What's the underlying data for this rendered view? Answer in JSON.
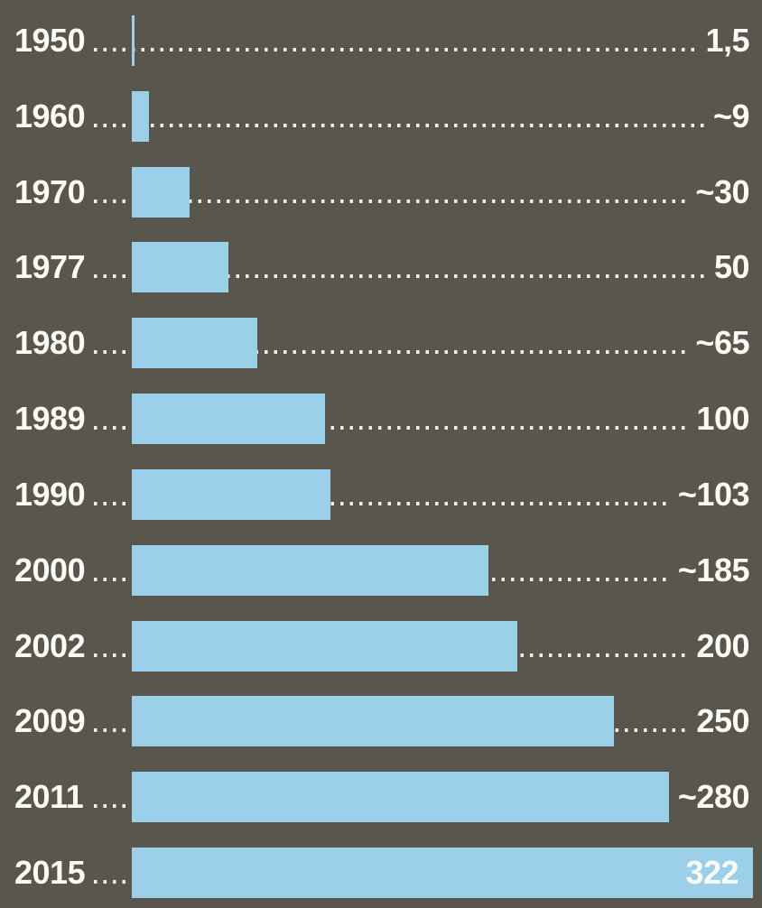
{
  "page": {
    "background_color": "#59564e",
    "bar_color": "#9bcfea",
    "text_color": "#fcfaf4",
    "dot_color": "#f0ede5"
  },
  "chart_data": {
    "type": "bar",
    "orientation": "horizontal",
    "title": "",
    "xlabel": "",
    "ylabel": "",
    "legend": null,
    "grid": "dotted-leader-lines",
    "max_value": 322,
    "xlim": [
      0,
      322
    ],
    "categories": [
      "1950",
      "1960",
      "1970",
      "1977",
      "1980",
      "1989",
      "1990",
      "2000",
      "2002",
      "2009",
      "2011",
      "2015"
    ],
    "values": [
      1.5,
      9,
      30,
      50,
      65,
      100,
      103,
      185,
      200,
      250,
      280,
      322
    ],
    "value_labels": [
      "1,5",
      "~9",
      "~30",
      "50",
      "~65",
      "100",
      "~103",
      "~185",
      "200",
      "250",
      "~280",
      "322"
    ],
    "rows": [
      {
        "year": "1950",
        "value": 1.5,
        "label": "1,5",
        "value_inside_bar": false
      },
      {
        "year": "1960",
        "value": 9,
        "label": "~9",
        "value_inside_bar": false
      },
      {
        "year": "1970",
        "value": 30,
        "label": "~30",
        "value_inside_bar": false
      },
      {
        "year": "1977",
        "value": 50,
        "label": "50",
        "value_inside_bar": false
      },
      {
        "year": "1980",
        "value": 65,
        "label": "~65",
        "value_inside_bar": false
      },
      {
        "year": "1989",
        "value": 100,
        "label": "100",
        "value_inside_bar": false
      },
      {
        "year": "1990",
        "value": 103,
        "label": "~103",
        "value_inside_bar": false
      },
      {
        "year": "2000",
        "value": 185,
        "label": "~185",
        "value_inside_bar": false
      },
      {
        "year": "2002",
        "value": 200,
        "label": "200",
        "value_inside_bar": false
      },
      {
        "year": "2009",
        "value": 250,
        "label": "250",
        "value_inside_bar": false
      },
      {
        "year": "2011",
        "value": 280,
        "label": "~280",
        "value_inside_bar": false
      },
      {
        "year": "2015",
        "value": 322,
        "label": "322",
        "value_inside_bar": true
      }
    ]
  }
}
